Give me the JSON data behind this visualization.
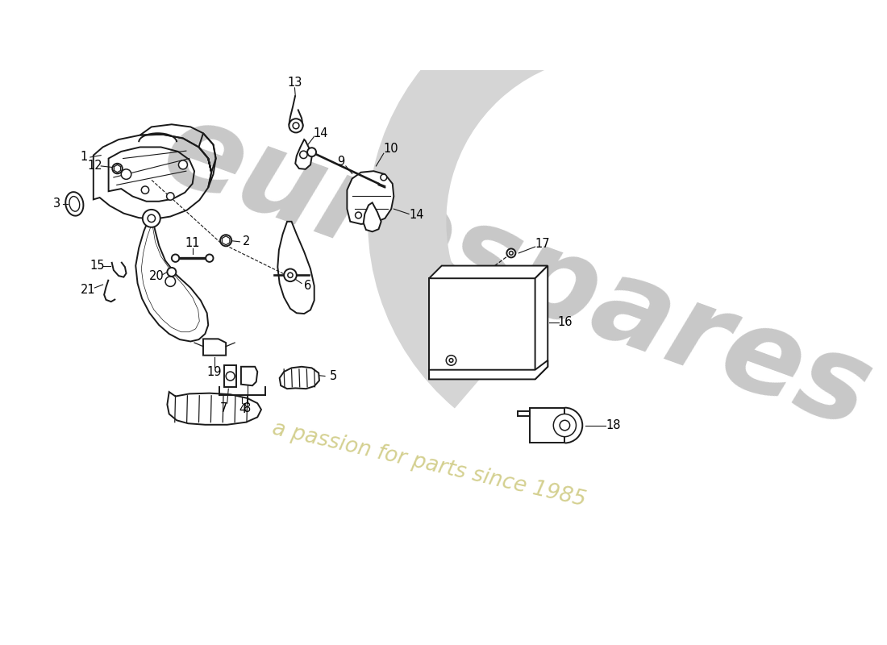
{
  "background_color": "#ffffff",
  "watermark_text1": "eurospares",
  "watermark_text2": "a passion for parts since 1985",
  "line_color": "#1a1a1a",
  "label_fontsize": 10.5,
  "wm_arc_color": "#d5d5d5",
  "wm_text_color": "#c8c8c8",
  "wm_tagline_color": "#d4d090"
}
